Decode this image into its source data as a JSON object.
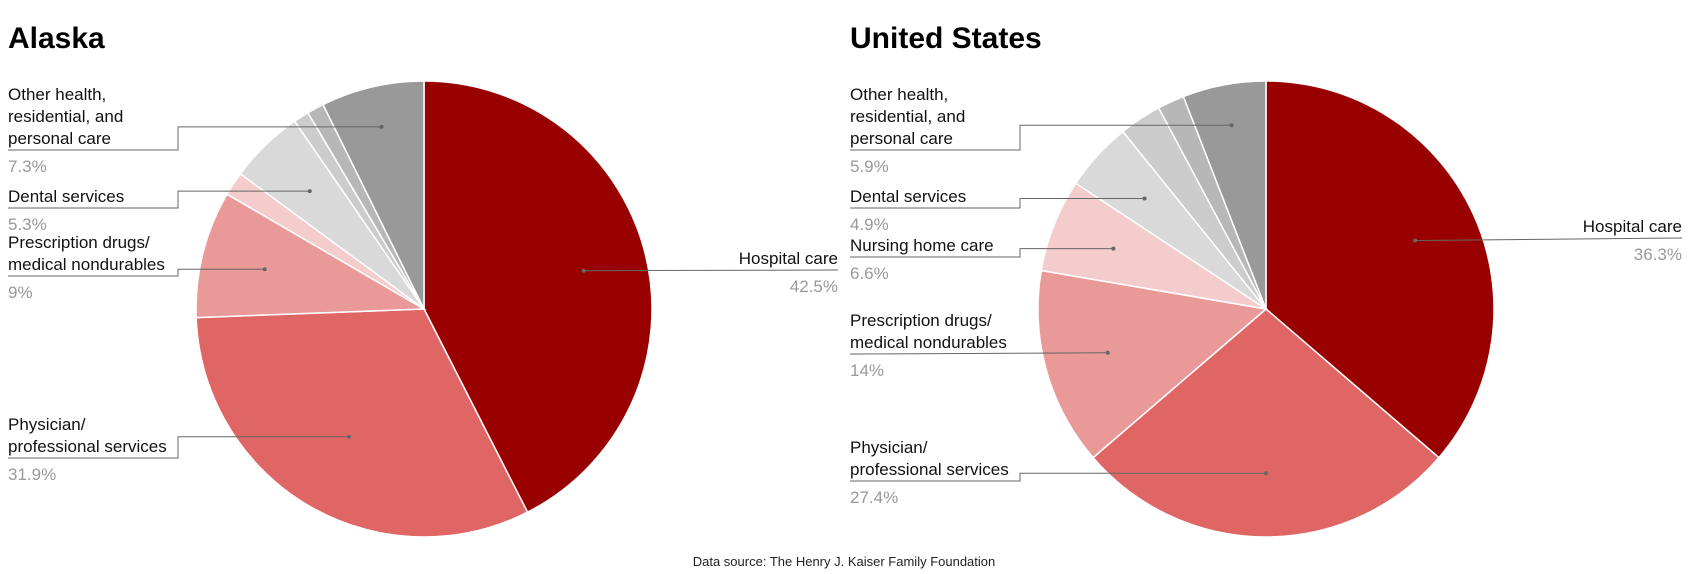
{
  "colors": {
    "hospital": "#990000",
    "physician": "#e06666",
    "prescription": "#ea9999",
    "nursing": "#f4cccc",
    "dental": "#d9d9d9",
    "other_small_1": "#cccccc",
    "other_small_2": "#b7b7b7",
    "other_health": "#999999",
    "leader": "#666666",
    "percent_text": "#999999"
  },
  "source": "Data source: The Henry J. Kaiser Family Foundation",
  "chart_data": [
    {
      "type": "pie",
      "title": "Alaska",
      "slices": [
        {
          "key": "hospital",
          "label": [
            "Hospital care"
          ],
          "value": 42.5,
          "pct_label": "42.5%",
          "labeled": true
        },
        {
          "key": "physician",
          "label": [
            "Physician/",
            "professional services"
          ],
          "value": 31.9,
          "pct_label": "31.9%",
          "labeled": true
        },
        {
          "key": "prescription",
          "label": [
            "Prescription drugs/",
            "medical nondurables"
          ],
          "value": 9.0,
          "pct_label": "9%",
          "labeled": true
        },
        {
          "key": "nursing",
          "label": [],
          "value": 1.7,
          "pct_label": "",
          "labeled": false
        },
        {
          "key": "dental",
          "label": [
            "Dental services"
          ],
          "value": 5.3,
          "pct_label": "5.3%",
          "labeled": true
        },
        {
          "key": "other_small_1",
          "label": [],
          "value": 1.1,
          "pct_label": "",
          "labeled": false
        },
        {
          "key": "other_small_2",
          "label": [],
          "value": 1.2,
          "pct_label": "",
          "labeled": false
        },
        {
          "key": "other_health",
          "label": [
            "Other health,",
            "residential, and",
            "personal care"
          ],
          "value": 7.3,
          "pct_label": "7.3%",
          "labeled": true
        }
      ]
    },
    {
      "type": "pie",
      "title": "United States",
      "slices": [
        {
          "key": "hospital",
          "label": [
            "Hospital care"
          ],
          "value": 36.3,
          "pct_label": "36.3%",
          "labeled": true
        },
        {
          "key": "physician",
          "label": [
            "Physician/",
            "professional services"
          ],
          "value": 27.4,
          "pct_label": "27.4%",
          "labeled": true
        },
        {
          "key": "prescription",
          "label": [
            "Prescription drugs/",
            "medical nondurables"
          ],
          "value": 14.0,
          "pct_label": "14%",
          "labeled": true
        },
        {
          "key": "nursing",
          "label": [
            "Nursing home care"
          ],
          "value": 6.6,
          "pct_label": "6.6%",
          "labeled": true
        },
        {
          "key": "dental",
          "label": [
            "Dental services"
          ],
          "value": 4.9,
          "pct_label": "4.9%",
          "labeled": true
        },
        {
          "key": "other_small_1",
          "label": [],
          "value": 3.0,
          "pct_label": "",
          "labeled": false
        },
        {
          "key": "other_small_2",
          "label": [],
          "value": 1.9,
          "pct_label": "",
          "labeled": false
        },
        {
          "key": "other_health",
          "label": [
            "Other health,",
            "residential, and",
            "personal care"
          ],
          "value": 5.9,
          "pct_label": "5.9%",
          "labeled": true
        }
      ]
    }
  ]
}
